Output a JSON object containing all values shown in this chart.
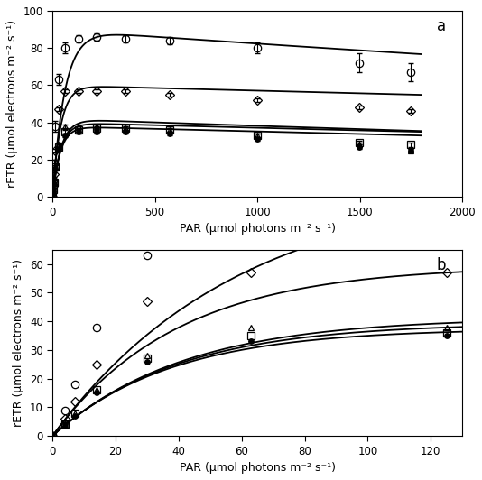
{
  "title_a": "a",
  "title_b": "b",
  "xlabel": "PAR (μmol photons m⁻² s⁻¹)",
  "ylabel": "rETR (μmol electrons m⁻² s⁻¹)",
  "series": [
    {
      "name": "circle_open",
      "marker": "o",
      "fillstyle": "none",
      "markersize": 6,
      "linewidth": 1.3,
      "color": "black",
      "x": [
        0,
        4,
        7,
        14,
        30,
        63,
        125,
        214,
        357,
        571,
        999,
        1499,
        1750
      ],
      "y": [
        0,
        9,
        18,
        38,
        63,
        80,
        85,
        86,
        85,
        84,
        80,
        72,
        67
      ],
      "yerr": [
        0,
        1,
        2,
        3,
        3,
        3,
        2,
        2,
        2,
        2,
        3,
        5,
        5
      ]
    },
    {
      "name": "diamond_open",
      "marker": "D",
      "fillstyle": "none",
      "markersize": 5,
      "linewidth": 1.3,
      "color": "black",
      "x": [
        0,
        4,
        7,
        14,
        30,
        63,
        125,
        214,
        357,
        571,
        999,
        1499,
        1750
      ],
      "y": [
        0,
        6,
        12,
        25,
        47,
        57,
        57,
        57,
        57,
        55,
        52,
        48,
        46
      ],
      "yerr": [
        0,
        1,
        1,
        1,
        1,
        1,
        1,
        1,
        1,
        1,
        1,
        1,
        1
      ]
    },
    {
      "name": "triangle_open",
      "marker": "^",
      "fillstyle": "none",
      "markersize": 5,
      "linewidth": 1.3,
      "color": "black",
      "x": [
        0,
        4,
        7,
        14,
        30,
        63,
        125,
        214,
        357,
        571,
        999,
        1499,
        1750
      ],
      "y": [
        0,
        4,
        8,
        16,
        28,
        38,
        38,
        38,
        37,
        36,
        33,
        28,
        25
      ],
      "yerr": [
        0,
        1,
        1,
        1,
        1,
        1,
        1,
        1,
        1,
        1,
        1,
        1,
        1
      ]
    },
    {
      "name": "square_open",
      "marker": "s",
      "fillstyle": "none",
      "markersize": 6,
      "linewidth": 1.3,
      "color": "black",
      "x": [
        0,
        4,
        7,
        14,
        30,
        63,
        125,
        214,
        357,
        571,
        999,
        1499,
        1750
      ],
      "y": [
        0,
        4,
        8,
        16,
        27,
        35,
        36,
        37,
        37,
        36,
        33,
        29,
        28
      ],
      "yerr": [
        0,
        1,
        1,
        1,
        1,
        1,
        1,
        1,
        1,
        1,
        1,
        1,
        1
      ]
    },
    {
      "name": "circle_filled",
      "marker": "o",
      "fillstyle": "full",
      "markersize": 4,
      "linewidth": 1.3,
      "color": "black",
      "x": [
        0,
        4,
        7,
        14,
        30,
        63,
        125,
        214,
        357,
        571,
        999,
        1499,
        1750
      ],
      "y": [
        0,
        4,
        7,
        15,
        26,
        33,
        35,
        35,
        35,
        34,
        31,
        27,
        25
      ],
      "yerr": [
        0,
        1,
        1,
        1,
        1,
        1,
        1,
        1,
        1,
        1,
        1,
        1,
        1
      ]
    }
  ],
  "xlim_a": [
    0,
    2000
  ],
  "ylim_a": [
    0,
    100
  ],
  "xticks_a": [
    0,
    500,
    1000,
    1500,
    2000
  ],
  "yticks_a": [
    0,
    20,
    40,
    60,
    80,
    100
  ],
  "xlim_b": [
    0,
    130
  ],
  "ylim_b": [
    0,
    65
  ],
  "xticks_b": [
    0,
    20,
    40,
    60,
    80,
    100,
    120
  ],
  "yticks_b": [
    0,
    10,
    20,
    30,
    40,
    50,
    60
  ]
}
